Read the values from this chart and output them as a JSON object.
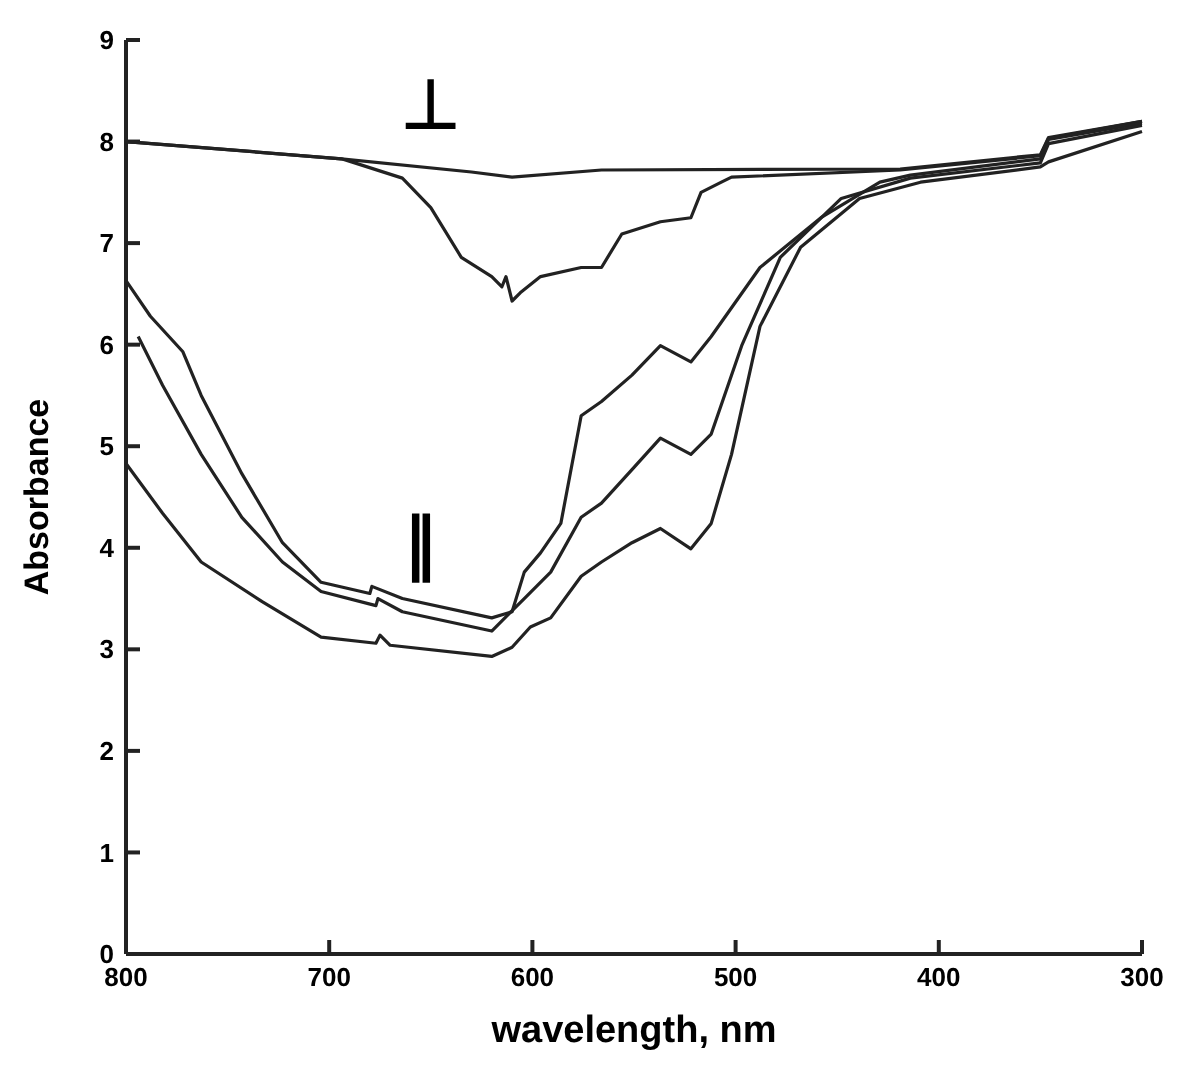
{
  "chart_data": {
    "type": "line",
    "xlabel": "wavelength, nm",
    "ylabel": "Absorbance",
    "xlim": [
      800,
      300
    ],
    "ylim": [
      0,
      9
    ],
    "xticks": [
      800,
      700,
      600,
      500,
      400,
      300
    ],
    "yticks": [
      0,
      1,
      2,
      3,
      4,
      5,
      6,
      7,
      8,
      9
    ],
    "grid": false,
    "marker": "none",
    "line_style": "solid",
    "annotations": [
      "⊥",
      "∥"
    ],
    "series": [
      {
        "color": "#222222",
        "x": [
          800,
          694,
          630,
          610,
          566,
          419,
          350,
          346,
          300
        ],
        "values": [
          8.0,
          7.83,
          7.7,
          7.65,
          7.72,
          7.73,
          7.87,
          8.04,
          8.2
        ]
      },
      {
        "color": "#222222",
        "x": [
          800,
          694,
          689,
          664,
          650,
          635,
          620,
          615,
          613,
          610,
          606,
          596,
          576,
          566,
          556,
          537,
          522,
          517,
          507,
          502,
          419,
          350,
          346,
          300
        ],
        "values": [
          8.0,
          7.83,
          7.8,
          7.64,
          7.35,
          6.86,
          6.67,
          6.57,
          6.67,
          6.43,
          6.51,
          6.67,
          6.76,
          6.76,
          7.09,
          7.21,
          7.25,
          7.5,
          7.6,
          7.65,
          7.72,
          7.86,
          8.03,
          8.2
        ]
      },
      {
        "color": "#222222",
        "x": [
          800,
          788,
          772,
          763,
          743,
          723,
          704,
          680,
          679,
          664,
          620,
          610,
          604,
          596,
          586,
          576,
          566,
          551,
          537,
          522,
          512,
          488,
          458,
          429,
          414,
          350,
          346,
          300
        ],
        "values": [
          6.63,
          6.28,
          5.93,
          5.5,
          4.73,
          4.05,
          3.66,
          3.55,
          3.62,
          3.5,
          3.31,
          3.37,
          3.76,
          3.95,
          4.24,
          5.3,
          5.44,
          5.7,
          5.99,
          5.83,
          6.08,
          6.76,
          7.25,
          7.6,
          7.67,
          7.83,
          8.02,
          8.18
        ]
      },
      {
        "color": "#222222",
        "x": [
          794,
          782,
          763,
          743,
          723,
          704,
          677,
          676,
          664,
          620,
          604,
          591,
          576,
          566,
          551,
          537,
          522,
          512,
          497,
          478,
          448,
          414,
          350,
          346,
          300
        ],
        "values": [
          6.08,
          5.6,
          4.92,
          4.3,
          3.86,
          3.57,
          3.43,
          3.5,
          3.37,
          3.18,
          3.5,
          3.76,
          4.3,
          4.44,
          4.77,
          5.08,
          4.92,
          5.12,
          5.99,
          6.86,
          7.44,
          7.64,
          7.79,
          7.98,
          8.16
        ]
      },
      {
        "color": "#222222",
        "x": [
          800,
          782,
          763,
          733,
          704,
          677,
          675,
          670,
          620,
          610,
          601,
          591,
          576,
          566,
          551,
          537,
          522,
          512,
          502,
          488,
          468,
          439,
          409,
          350,
          346,
          300
        ],
        "values": [
          4.83,
          4.34,
          3.86,
          3.47,
          3.12,
          3.06,
          3.14,
          3.04,
          2.93,
          3.02,
          3.22,
          3.31,
          3.72,
          3.86,
          4.05,
          4.19,
          3.99,
          4.24,
          4.92,
          6.18,
          6.96,
          7.44,
          7.6,
          7.75,
          7.8,
          8.1
        ]
      }
    ]
  }
}
